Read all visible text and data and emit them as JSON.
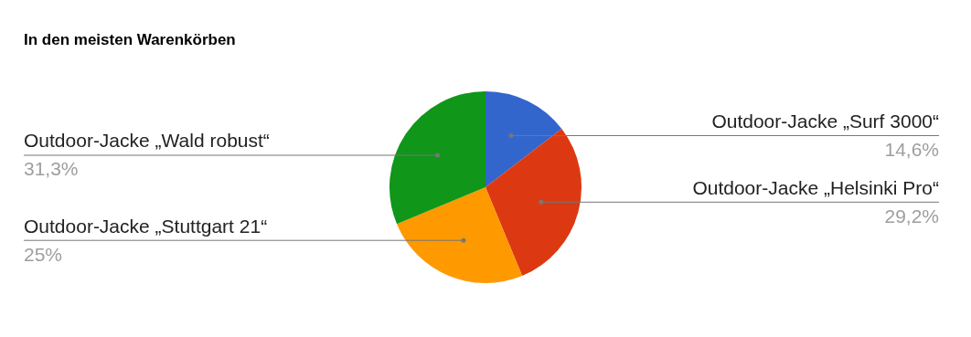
{
  "chart_data": {
    "type": "pie",
    "title": "In den meisten Warenkörben",
    "categories": [
      "Outdoor-Jacke „Surf 3000“",
      "Outdoor-Jacke „Helsinki Pro“",
      "Outdoor-Jacke „Stuttgart 21“",
      "Outdoor-Jacke „Wald robust“"
    ],
    "values": [
      14.6,
      29.2,
      25,
      31.3
    ],
    "colors": [
      "#3366cc",
      "#dc3912",
      "#ff9900",
      "#109618"
    ],
    "value_labels": [
      "14,6%",
      "29,2%",
      "25%",
      "31,3%"
    ],
    "legend": false
  }
}
